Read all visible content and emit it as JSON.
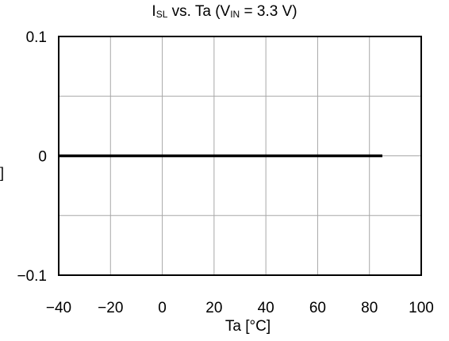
{
  "chart_data": {
    "type": "line",
    "title": {
      "parts": [
        {
          "text": "I",
          "sub": "SL"
        },
        {
          "text": " vs. Ta (V",
          "sub": "IN"
        },
        {
          "text": " = 3.3 V)",
          "sub": ""
        }
      ]
    },
    "xlabel": "Ta [°C]",
    "ylabel_visible": "]",
    "xlim": [
      -40,
      100
    ],
    "ylim": [
      -0.1,
      0.1
    ],
    "xticks": [
      -40,
      -20,
      0,
      20,
      40,
      60,
      80,
      100
    ],
    "xtick_labels": [
      "−40",
      "−20",
      "0",
      "20",
      "40",
      "60",
      "80",
      "100"
    ],
    "yticks": [
      -0.1,
      -0.05,
      0,
      0.05,
      0.1
    ],
    "ytick_labels": [
      "−0.1",
      "",
      "0",
      "",
      "0.1"
    ],
    "grid": true,
    "series": [
      {
        "x": [
          -40,
          85
        ],
        "y": [
          0,
          0
        ],
        "color": "#000000"
      }
    ]
  }
}
